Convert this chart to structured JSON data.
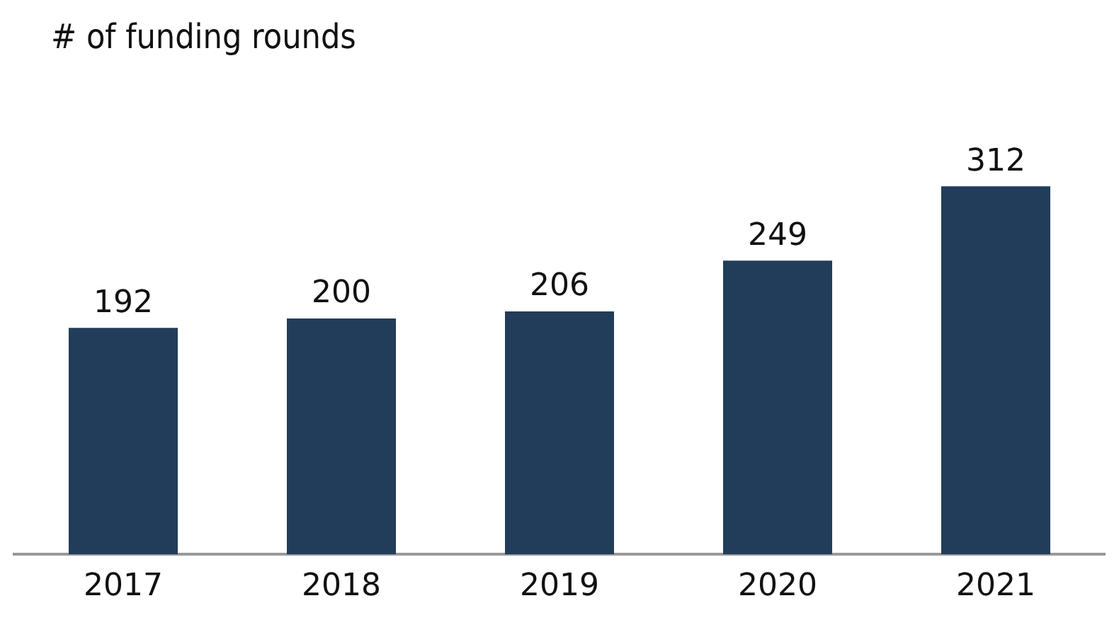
{
  "chart_data": {
    "type": "bar",
    "title": "# of funding rounds",
    "categories": [
      "2017",
      "2018",
      "2019",
      "2020",
      "2021"
    ],
    "values": [
      192,
      200,
      206,
      249,
      312
    ],
    "color": "#213d59",
    "data_labels": true,
    "grid": false,
    "legend": false
  }
}
